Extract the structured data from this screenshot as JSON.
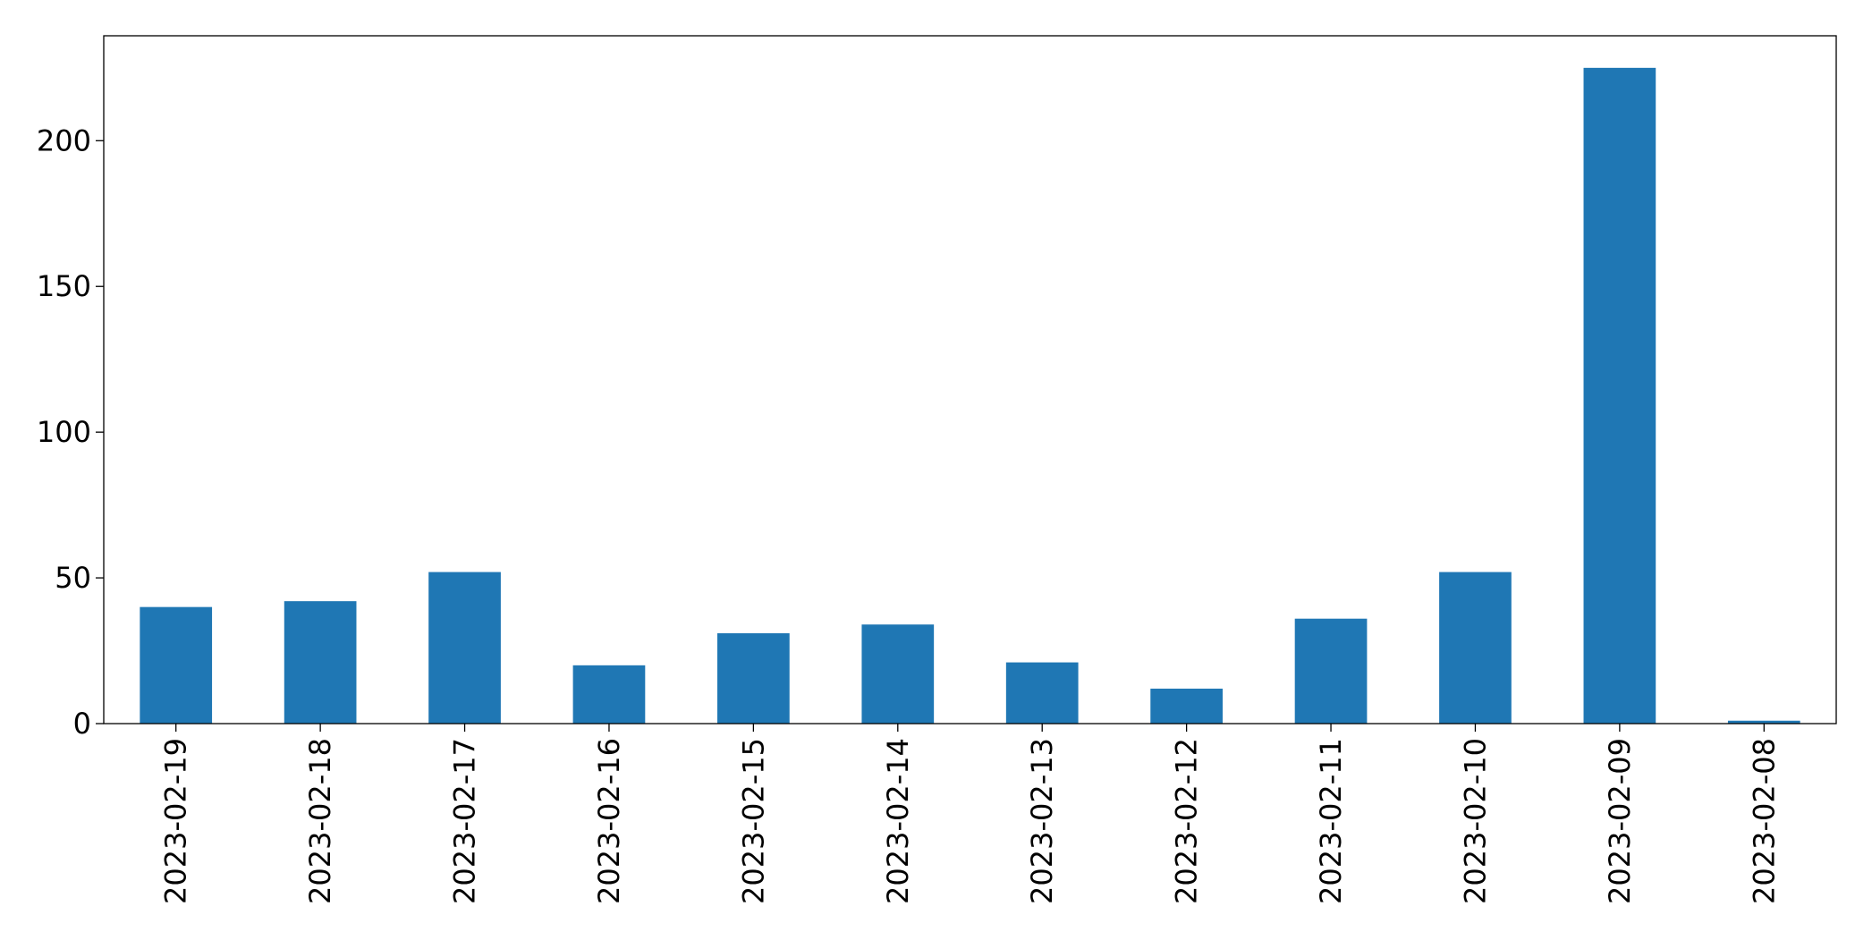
{
  "chart_data": {
    "type": "bar",
    "categories": [
      "2023-02-19",
      "2023-02-18",
      "2023-02-17",
      "2023-02-16",
      "2023-02-15",
      "2023-02-14",
      "2023-02-13",
      "2023-02-12",
      "2023-02-11",
      "2023-02-10",
      "2023-02-09",
      "2023-02-08"
    ],
    "values": [
      40,
      42,
      52,
      20,
      31,
      34,
      21,
      12,
      36,
      52,
      225,
      1
    ],
    "color": "#1f77b4",
    "ylim": [
      0,
      236
    ],
    "yticks": [
      0,
      50,
      100,
      150,
      200
    ],
    "grid": false
  }
}
